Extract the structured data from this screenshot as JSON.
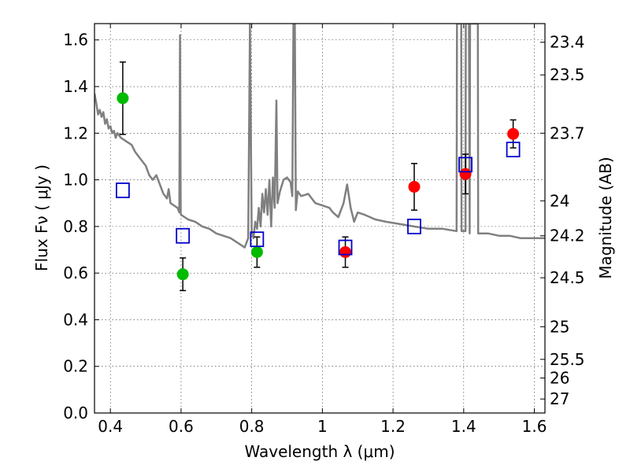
{
  "chart_data": {
    "type": "scatter",
    "title": "",
    "xlabel": "Wavelength  λ (μm)",
    "ylabel": "Flux  Fν  ( μJy )",
    "ylabel_right": "Magnitude (AB)",
    "xlim": [
      0.355,
      1.63
    ],
    "ylim": [
      0.0,
      1.67
    ],
    "grid": true,
    "x_ticks": [
      0.4,
      0.6,
      0.8,
      1.0,
      1.2,
      1.4,
      1.6
    ],
    "x_tick_labels": [
      "0.4",
      "0.6",
      "0.8",
      "1",
      "1.2",
      "1.4",
      "1.6"
    ],
    "y_ticks": [
      0.0,
      0.2,
      0.4,
      0.6,
      0.8,
      1.0,
      1.2,
      1.4,
      1.6
    ],
    "y_tick_labels": [
      "0.0",
      "0.2",
      "0.4",
      "0.6",
      "0.8",
      "1.0",
      "1.2",
      "1.4",
      "1.6"
    ],
    "right_ticks": [
      {
        "label": "23.4",
        "flux": 1.59
      },
      {
        "label": "23.5",
        "flux": 1.45
      },
      {
        "label": "23.7",
        "flux": 1.2
      },
      {
        "label": "24",
        "flux": 0.91
      },
      {
        "label": "24.2",
        "flux": 0.76
      },
      {
        "label": "24.5",
        "flux": 0.58
      },
      {
        "label": "25",
        "flux": 0.37
      },
      {
        "label": "25.5",
        "flux": 0.23
      },
      {
        "label": "26",
        "flux": 0.15
      },
      {
        "label": "27",
        "flux": 0.06
      }
    ],
    "series": [
      {
        "kind": "line",
        "color": "#808080",
        "points": [
          [
            0.355,
            1.37
          ],
          [
            0.36,
            1.33
          ],
          [
            0.365,
            1.28
          ],
          [
            0.37,
            1.3
          ],
          [
            0.375,
            1.27
          ],
          [
            0.38,
            1.29
          ],
          [
            0.385,
            1.24
          ],
          [
            0.39,
            1.26
          ],
          [
            0.395,
            1.22
          ],
          [
            0.4,
            1.23
          ],
          [
            0.405,
            1.2
          ],
          [
            0.41,
            1.21
          ],
          [
            0.415,
            1.18
          ],
          [
            0.42,
            1.2
          ],
          [
            0.43,
            1.18
          ],
          [
            0.44,
            1.17
          ],
          [
            0.45,
            1.16
          ],
          [
            0.46,
            1.15
          ],
          [
            0.47,
            1.12
          ],
          [
            0.48,
            1.1
          ],
          [
            0.49,
            1.08
          ],
          [
            0.5,
            1.06
          ],
          [
            0.51,
            1.02
          ],
          [
            0.52,
            1.0
          ],
          [
            0.53,
            1.02
          ],
          [
            0.54,
            0.98
          ],
          [
            0.55,
            0.94
          ],
          [
            0.56,
            0.92
          ],
          [
            0.565,
            0.96
          ],
          [
            0.57,
            0.9
          ],
          [
            0.58,
            0.89
          ],
          [
            0.59,
            0.88
          ],
          [
            0.595,
            0.86
          ],
          [
            0.597,
            1.62
          ],
          [
            0.599,
            0.86
          ],
          [
            0.6,
            0.85
          ],
          [
            0.62,
            0.83
          ],
          [
            0.64,
            0.82
          ],
          [
            0.66,
            0.8
          ],
          [
            0.68,
            0.79
          ],
          [
            0.7,
            0.77
          ],
          [
            0.72,
            0.76
          ],
          [
            0.74,
            0.75
          ],
          [
            0.76,
            0.73
          ],
          [
            0.78,
            0.71
          ],
          [
            0.79,
            0.75
          ],
          [
            0.795,
            1.67
          ],
          [
            0.8,
            0.78
          ],
          [
            0.805,
            0.75
          ],
          [
            0.81,
            0.82
          ],
          [
            0.815,
            0.79
          ],
          [
            0.82,
            0.88
          ],
          [
            0.825,
            0.8
          ],
          [
            0.83,
            0.94
          ],
          [
            0.835,
            0.86
          ],
          [
            0.84,
            0.96
          ],
          [
            0.845,
            0.85
          ],
          [
            0.85,
            1.0
          ],
          [
            0.855,
            0.8
          ],
          [
            0.86,
            1.01
          ],
          [
            0.865,
            0.88
          ],
          [
            0.87,
            1.34
          ],
          [
            0.873,
            0.9
          ],
          [
            0.88,
            0.95
          ],
          [
            0.89,
            1.0
          ],
          [
            0.9,
            1.01
          ],
          [
            0.91,
            0.99
          ],
          [
            0.915,
            0.93
          ],
          [
            0.918,
            1.67
          ],
          [
            0.922,
            1.67
          ],
          [
            0.925,
            0.87
          ],
          [
            0.93,
            0.95
          ],
          [
            0.94,
            0.93
          ],
          [
            0.96,
            0.94
          ],
          [
            0.98,
            0.9
          ],
          [
            1.0,
            0.89
          ],
          [
            1.02,
            0.88
          ],
          [
            1.03,
            0.86
          ],
          [
            1.045,
            0.84
          ],
          [
            1.06,
            0.9
          ],
          [
            1.07,
            0.98
          ],
          [
            1.08,
            0.88
          ],
          [
            1.09,
            0.82
          ],
          [
            1.1,
            0.86
          ],
          [
            1.12,
            0.85
          ],
          [
            1.15,
            0.83
          ],
          [
            1.18,
            0.82
          ],
          [
            1.22,
            0.81
          ],
          [
            1.26,
            0.8
          ],
          [
            1.3,
            0.79
          ],
          [
            1.34,
            0.79
          ],
          [
            1.38,
            0.78
          ],
          [
            1.381,
            1.67
          ],
          [
            1.393,
            1.67
          ],
          [
            1.394,
            0.78
          ],
          [
            1.405,
            0.78
          ],
          [
            1.406,
            1.67
          ],
          [
            1.415,
            1.67
          ],
          [
            1.417,
            0.77
          ],
          [
            1.418,
            1.67
          ],
          [
            1.44,
            1.67
          ],
          [
            1.441,
            0.77
          ],
          [
            1.47,
            0.77
          ],
          [
            1.5,
            0.76
          ],
          [
            1.53,
            0.76
          ],
          [
            1.56,
            0.75
          ],
          [
            1.6,
            0.75
          ],
          [
            1.63,
            0.75
          ]
        ]
      },
      {
        "kind": "points",
        "marker": "circle",
        "color": "#00bb00",
        "points": [
          {
            "x": 0.435,
            "y": 1.35,
            "yerr": 0.155
          },
          {
            "x": 0.605,
            "y": 0.595,
            "yerr": 0.07
          },
          {
            "x": 0.815,
            "y": 0.69,
            "yerr": 0.065
          }
        ]
      },
      {
        "kind": "points",
        "marker": "circle",
        "color": "#ff0000",
        "points": [
          {
            "x": 1.065,
            "y": 0.69,
            "yerr": 0.065
          },
          {
            "x": 1.26,
            "y": 0.97,
            "yerr": 0.1
          },
          {
            "x": 1.405,
            "y": 1.025,
            "yerr": 0.085
          },
          {
            "x": 1.54,
            "y": 1.197,
            "yerr": 0.06
          }
        ]
      },
      {
        "kind": "points",
        "marker": "square-open",
        "color": "#0000cc",
        "points": [
          {
            "x": 0.435,
            "y": 0.955
          },
          {
            "x": 0.605,
            "y": 0.76
          },
          {
            "x": 0.815,
            "y": 0.745
          },
          {
            "x": 1.065,
            "y": 0.71
          },
          {
            "x": 1.26,
            "y": 0.8
          },
          {
            "x": 1.405,
            "y": 1.065
          },
          {
            "x": 1.54,
            "y": 1.13
          }
        ]
      }
    ]
  }
}
